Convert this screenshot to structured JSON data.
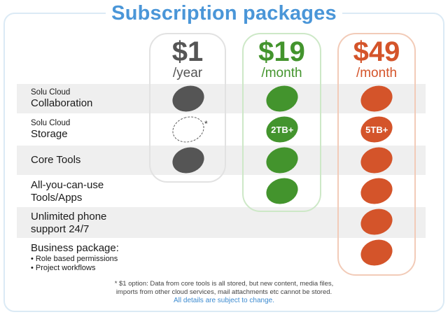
{
  "title": "Subscription packages",
  "plans": [
    {
      "price": "$1",
      "period": "/year",
      "color": "#555555"
    },
    {
      "price": "$19",
      "period": "/month",
      "color": "#43942d"
    },
    {
      "price": "$49",
      "period": "/month",
      "color": "#d4542a"
    }
  ],
  "features": [
    {
      "small": "Solu Cloud",
      "big": "Collaboration"
    },
    {
      "small": "Solu Cloud",
      "big": "Storage"
    },
    {
      "big": "Core Tools"
    },
    {
      "big": "All-you-can-use",
      "big2": "Tools/Apps"
    },
    {
      "big": "Unlimited phone",
      "big2": "support 24/7"
    },
    {
      "big": "Business package:",
      "bullets": [
        "• Role based permissions",
        "• Project workflows"
      ]
    }
  ],
  "storage_labels": {
    "basic_marker": "*",
    "standard": "2TB+",
    "premium": "5TB+"
  },
  "footnote_line1": "* $1 option: Data from core tools is all stored, but new content, media files,",
  "footnote_line2": "imports from other cloud services, mail attachments etc cannot be stored.",
  "footnote_blue": "All details are subject to change."
}
